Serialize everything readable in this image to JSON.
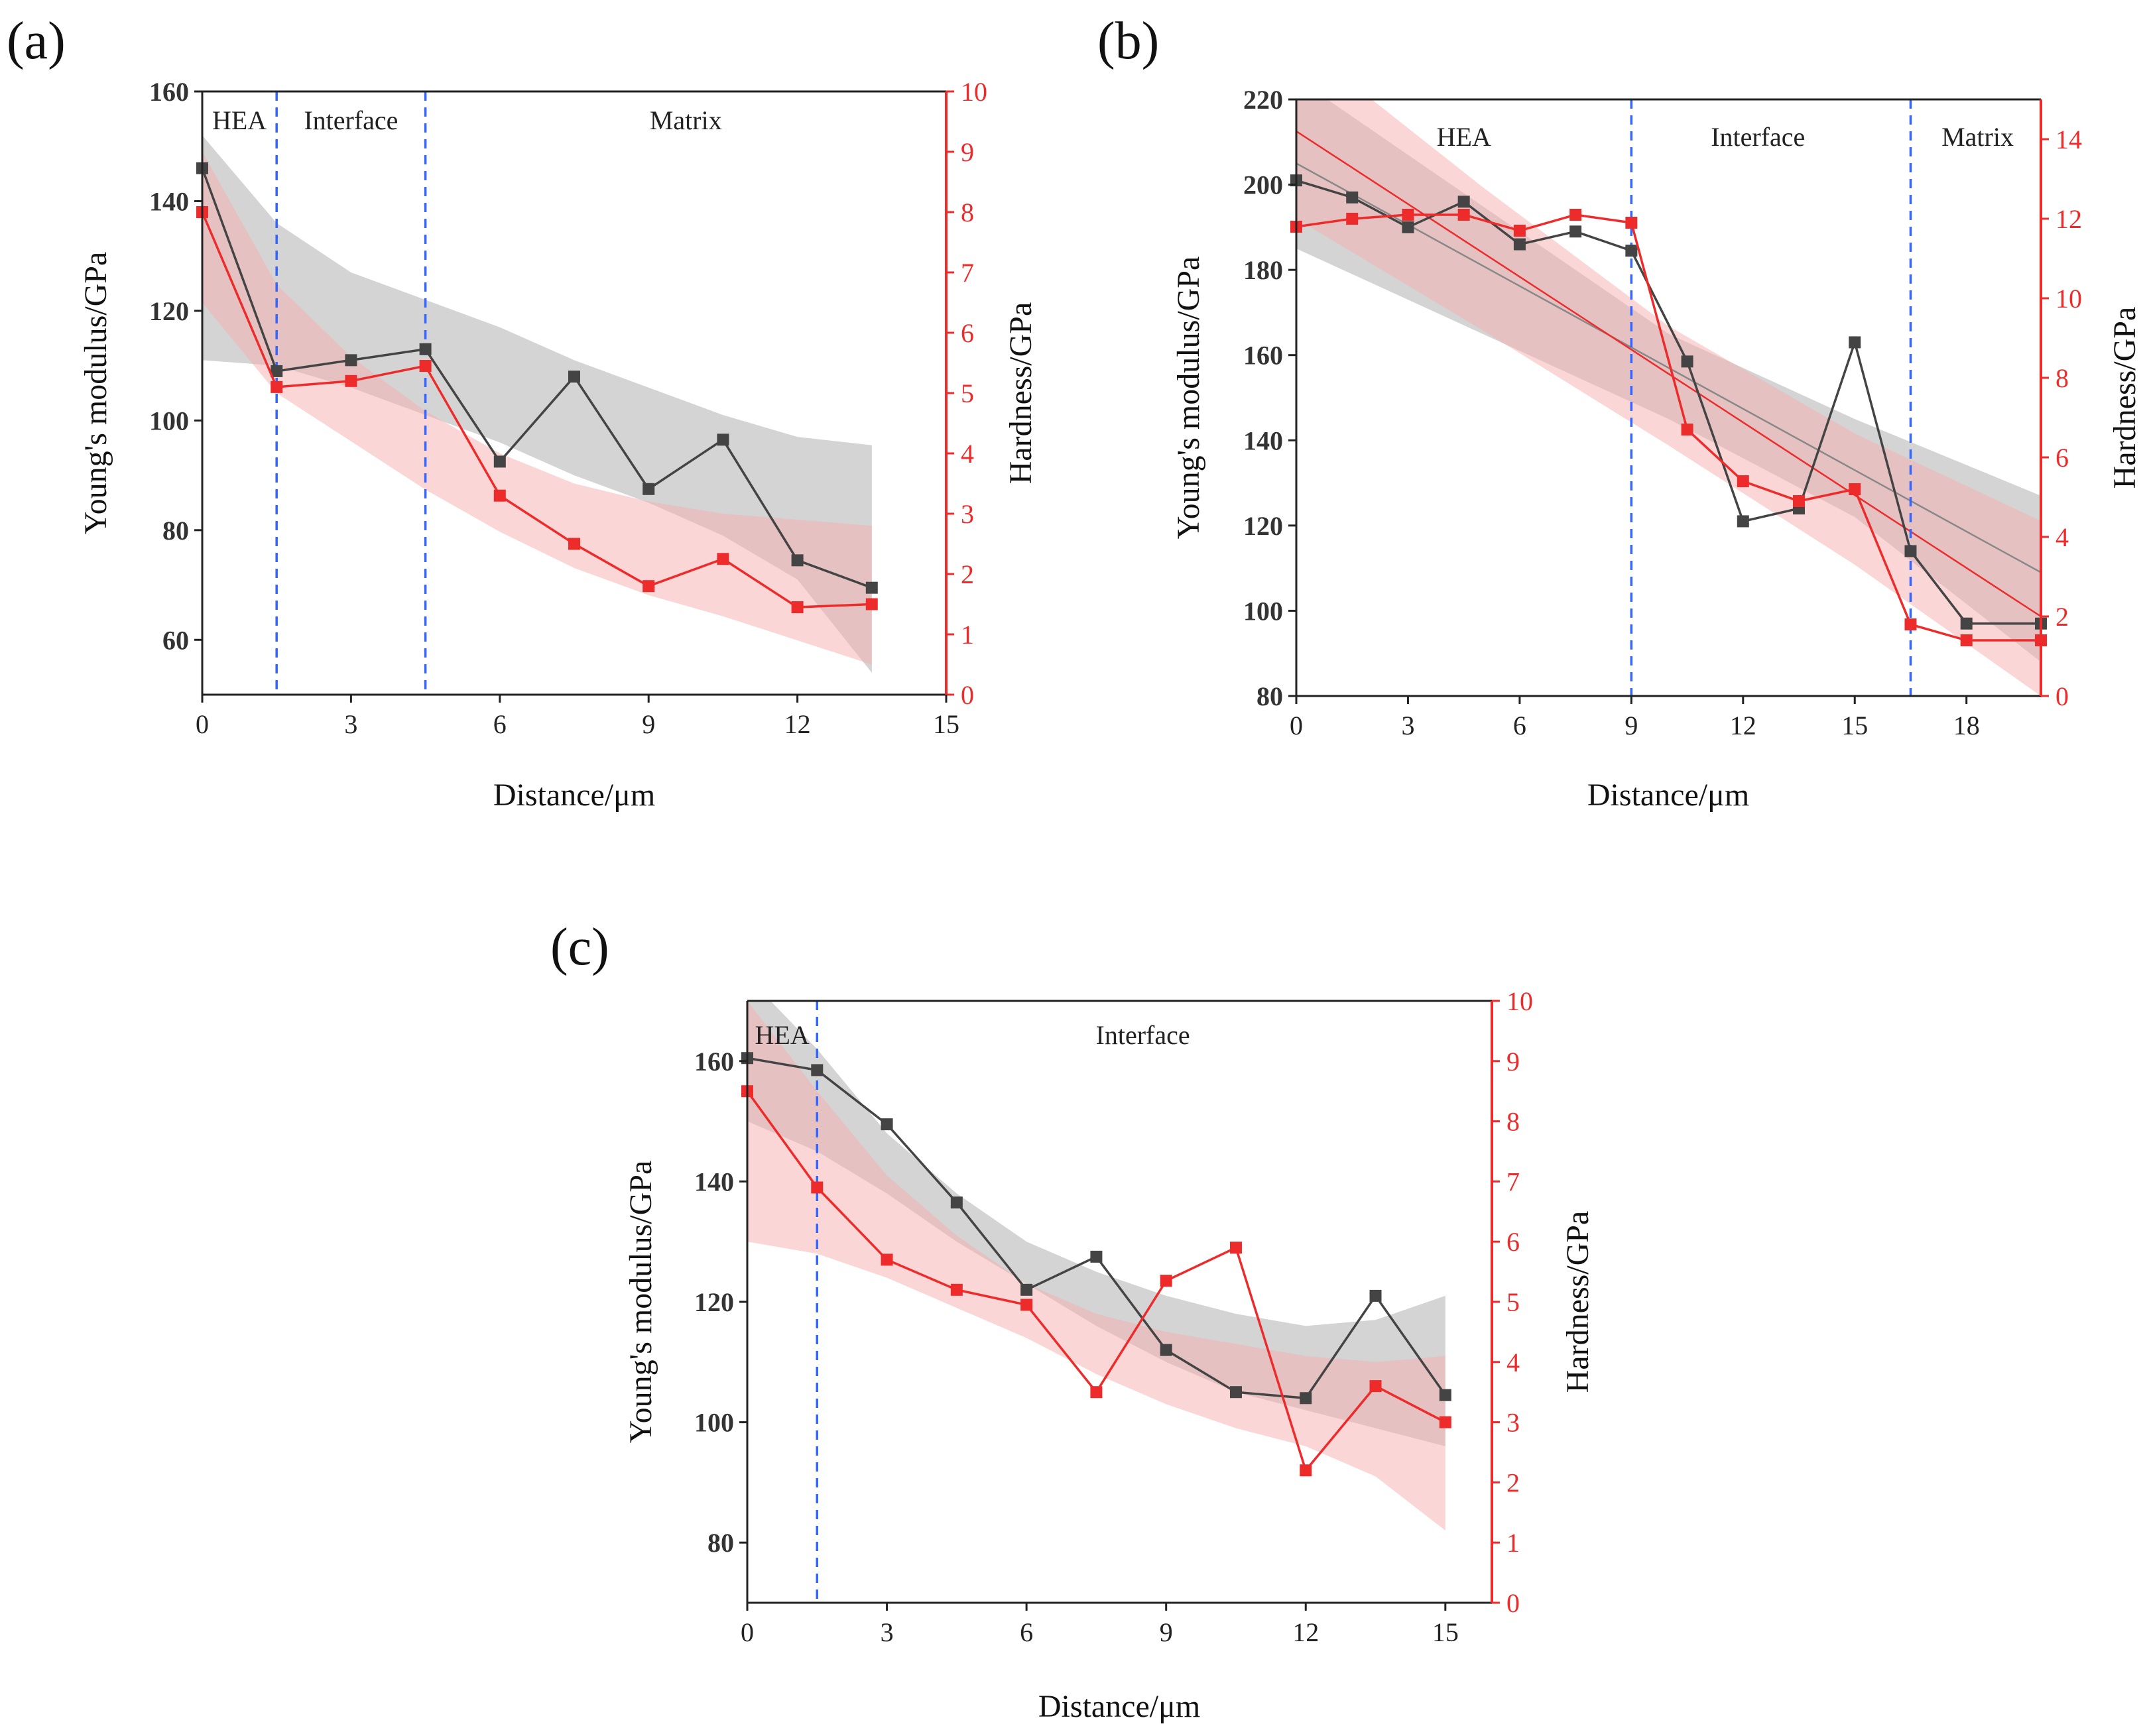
{
  "colors": {
    "modulus": "#444444",
    "hardness": "#ee2b2b",
    "modulus_band": "#cccccc",
    "hardness_band": "#f8aeae",
    "divider": "#3366ff",
    "right_axis": "#ee2b2b"
  },
  "chart_data": [
    {
      "panel": "(a)",
      "type": "line",
      "xlabel": "Distance/μm",
      "ylabel": "Young's modulus/GPa",
      "y2label": "Hardness/GPa",
      "xlim": [
        0,
        15
      ],
      "ylim": [
        50,
        160
      ],
      "y2lim": [
        0,
        10
      ],
      "xticks": [
        0,
        3,
        6,
        9,
        12,
        15
      ],
      "yticks": [
        60,
        80,
        100,
        120,
        140,
        160
      ],
      "y2ticks": [
        0,
        1,
        2,
        3,
        4,
        5,
        6,
        7,
        8,
        9,
        10
      ],
      "dividers": [
        1.5,
        4.5
      ],
      "regions": [
        {
          "label": "HEA",
          "x": 0.75
        },
        {
          "label": "Interface",
          "x": 3.0
        },
        {
          "label": "Matrix",
          "x": 9.75
        }
      ],
      "series": [
        {
          "name": "Young's modulus",
          "axis": "left",
          "x": [
            0,
            1.5,
            3,
            4.5,
            6,
            7.5,
            9,
            10.5,
            12,
            13.5
          ],
          "y": [
            146,
            109,
            111,
            113,
            92.5,
            108,
            87.5,
            96.5,
            74.5,
            69.5
          ]
        },
        {
          "name": "Hardness",
          "axis": "right",
          "x": [
            0,
            1.5,
            3,
            4.5,
            6,
            7.5,
            9,
            10.5,
            12,
            13.5
          ],
          "y": [
            8.0,
            5.1,
            5.2,
            5.45,
            3.3,
            2.5,
            1.8,
            2.25,
            1.45,
            1.5
          ]
        }
      ],
      "bands": [
        {
          "axis": "left",
          "x": [
            0,
            1.5,
            3,
            4.5,
            6,
            7.5,
            9,
            10.5,
            12,
            13.5
          ],
          "upper": [
            152,
            136,
            127,
            122,
            117,
            111,
            106,
            101,
            97,
            95.5
          ],
          "lower": [
            111,
            110,
            106,
            101,
            96,
            90,
            85,
            79,
            71,
            54
          ]
        },
        {
          "axis": "right",
          "x": [
            0,
            1.5,
            3,
            4.5,
            6,
            7.5,
            9,
            10.5,
            12,
            13.5
          ],
          "upper": [
            9.0,
            6.8,
            5.6,
            4.7,
            4.0,
            3.5,
            3.2,
            3.0,
            2.9,
            2.8
          ],
          "lower": [
            6.5,
            5.0,
            4.2,
            3.4,
            2.7,
            2.1,
            1.65,
            1.3,
            0.9,
            0.5
          ]
        }
      ]
    },
    {
      "panel": "(b)",
      "type": "line",
      "xlabel": "Distance/μm",
      "ylabel": "Young's modulus/GPa",
      "y2label": "Hardness/GPa",
      "xlim": [
        0,
        20
      ],
      "ylim": [
        80,
        220
      ],
      "y2lim": [
        0,
        15
      ],
      "xticks": [
        0,
        3,
        6,
        9,
        12,
        15,
        18
      ],
      "yticks": [
        80,
        100,
        120,
        140,
        160,
        180,
        200,
        220
      ],
      "y2ticks": [
        0,
        2,
        4,
        6,
        8,
        10,
        12,
        14
      ],
      "dividers": [
        9,
        16.5
      ],
      "regions": [
        {
          "label": "HEA",
          "x": 4.5
        },
        {
          "label": "Interface",
          "x": 12.4
        },
        {
          "label": "Matrix",
          "x": 18.3
        }
      ],
      "series": [
        {
          "name": "Young's modulus",
          "axis": "left",
          "x": [
            0,
            1.5,
            3,
            4.5,
            6,
            7.5,
            9,
            10.5,
            12,
            13.5,
            15,
            16.5,
            18,
            20
          ],
          "y": [
            201,
            197,
            190,
            196,
            186,
            189,
            184.5,
            158.5,
            121,
            124,
            163,
            114,
            97,
            97
          ]
        },
        {
          "name": "Hardness",
          "axis": "right",
          "x": [
            0,
            1.5,
            3,
            4.5,
            6,
            7.5,
            9,
            10.5,
            12,
            13.5,
            15,
            16.5,
            18,
            20
          ],
          "y": [
            11.8,
            12.0,
            12.1,
            12.1,
            11.7,
            12.1,
            11.9,
            6.7,
            5.4,
            4.9,
            5.2,
            1.8,
            1.4,
            1.4
          ]
        }
      ],
      "trend_lines": [
        {
          "axis": "left",
          "x": [
            0,
            20
          ],
          "y": [
            205,
            109
          ]
        },
        {
          "axis": "right",
          "x": [
            0,
            20
          ],
          "y": [
            14.2,
            2.0
          ]
        }
      ],
      "bands": [
        {
          "axis": "left",
          "x": [
            0,
            5,
            10,
            15,
            20
          ],
          "upper": [
            225,
            195,
            165,
            145,
            127
          ],
          "lower": [
            185,
            165,
            145,
            122,
            88
          ]
        },
        {
          "axis": "right",
          "x": [
            0,
            5,
            10,
            15,
            20
          ],
          "upper": [
            16.5,
            12.8,
            9.3,
            6.6,
            4.4
          ],
          "lower": [
            12.0,
            9.2,
            6.3,
            3.3,
            0
          ]
        }
      ]
    },
    {
      "panel": "(c)",
      "type": "line",
      "xlabel": "Distance/μm",
      "ylabel": "Young's modulus/GPa",
      "y2label": "Hardness/GPa",
      "xlim": [
        0,
        16
      ],
      "ylim": [
        70,
        170
      ],
      "y2lim": [
        0,
        10
      ],
      "xticks": [
        0,
        3,
        6,
        9,
        12,
        15
      ],
      "yticks": [
        80,
        100,
        120,
        140,
        160
      ],
      "y2ticks": [
        0,
        1,
        2,
        3,
        4,
        5,
        6,
        7,
        8,
        9,
        10
      ],
      "dividers": [
        1.5
      ],
      "regions": [
        {
          "label": "HEA",
          "x": 0.75
        },
        {
          "label": "Interface",
          "x": 8.5
        }
      ],
      "series": [
        {
          "name": "Young's modulus",
          "axis": "left",
          "x": [
            0,
            1.5,
            3,
            4.5,
            6,
            7.5,
            9,
            10.5,
            12,
            13.5,
            15
          ],
          "y": [
            160.5,
            158.5,
            149.5,
            136.5,
            122,
            127.5,
            112,
            105,
            104,
            121,
            104.5
          ]
        },
        {
          "name": "Hardness",
          "axis": "right",
          "x": [
            0,
            1.5,
            3,
            4.5,
            6,
            7.5,
            9,
            10.5,
            12,
            13.5,
            15
          ],
          "y": [
            8.5,
            6.9,
            5.7,
            5.2,
            4.95,
            3.5,
            5.35,
            5.9,
            2.2,
            3.6,
            3.0
          ]
        }
      ],
      "bands": [
        {
          "axis": "left",
          "x": [
            0,
            1.5,
            3,
            4.5,
            6,
            7.5,
            9,
            10.5,
            12,
            13.5,
            15
          ],
          "upper": [
            174,
            162,
            148,
            138,
            130,
            125,
            121,
            118,
            116,
            117,
            121
          ],
          "lower": [
            150,
            145,
            138,
            130,
            123,
            116,
            110,
            105,
            102,
            99,
            96
          ]
        },
        {
          "axis": "right",
          "x": [
            0,
            1.5,
            3,
            4.5,
            6,
            7.5,
            9,
            10.5,
            12,
            13.5,
            15
          ],
          "upper": [
            10.0,
            8.5,
            7.1,
            6.1,
            5.3,
            4.8,
            4.5,
            4.3,
            4.1,
            4.0,
            4.1
          ],
          "lower": [
            6.0,
            5.8,
            5.4,
            4.9,
            4.4,
            3.8,
            3.3,
            2.9,
            2.6,
            2.1,
            1.2
          ]
        }
      ]
    }
  ]
}
